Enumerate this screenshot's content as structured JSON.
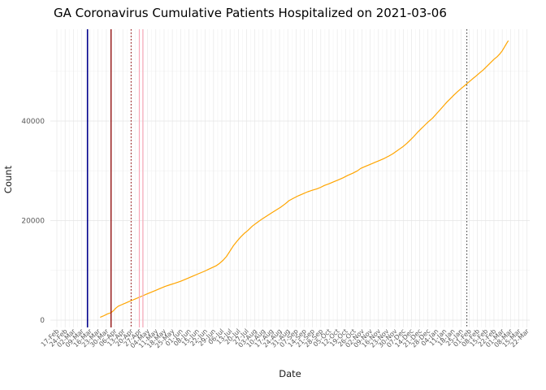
{
  "chart_data": {
    "type": "line",
    "title": "GA Coronavirus Cumulative Patients Hospitalized on 2021-03-06",
    "xlabel": "Date",
    "ylabel": "Count",
    "background": "#FFFFFF",
    "line_color": "#FFA500",
    "axis_text_color": "#5a5a5a",
    "axis_title_color": "#1a1a1a",
    "grid_major_color": "#E4E4E4",
    "grid_minor_color": "#F3F3F3",
    "grid": true,
    "legend": "none",
    "ylim": [
      0,
      58000
    ],
    "yticks": [
      0,
      20000,
      40000
    ],
    "y_minor_ticks": [
      10000,
      30000,
      50000
    ],
    "x_start_date": "2020-02-17",
    "x_tick_interval_days": 7,
    "x_tick_labels": [
      "17-Feb",
      "24-Feb",
      "02-Mar",
      "09-Mar",
      "16-Mar",
      "23-Mar",
      "30-Mar",
      "06-Apr",
      "13-Apr",
      "20-Apr",
      "27-Apr",
      "04-May",
      "11-May",
      "18-May",
      "25-May",
      "01-Jun",
      "08-Jun",
      "15-Jun",
      "22-Jun",
      "29-Jun",
      "06-Jul",
      "13-Jul",
      "20-Jul",
      "27-Jul",
      "03-Aug",
      "10-Aug",
      "17-Aug",
      "24-Aug",
      "31-Aug",
      "07-Sep",
      "14-Sep",
      "21-Sep",
      "28-Sep",
      "05-Oct",
      "12-Oct",
      "19-Oct",
      "26-Oct",
      "02-Nov",
      "09-Nov",
      "16-Nov",
      "23-Nov",
      "30-Nov",
      "07-Dec",
      "14-Dec",
      "21-Dec",
      "28-Dec",
      "04-Jan",
      "11-Jan",
      "18-Jan",
      "25-Jan",
      "01-Feb",
      "08-Feb",
      "15-Feb",
      "22-Feb",
      "01-Mar",
      "08-Mar",
      "15-Mar",
      "22-Mar"
    ],
    "series": [
      {
        "name": "Cumulative Patients Hospitalized",
        "points_x_unit": "days since 2020-02-17",
        "points": [
          [
            37,
            600
          ],
          [
            40,
            900
          ],
          [
            43,
            1250
          ],
          [
            46,
            1500
          ],
          [
            48,
            1900
          ],
          [
            50,
            2400
          ],
          [
            52,
            2800
          ],
          [
            55,
            3100
          ],
          [
            58,
            3400
          ],
          [
            61,
            3700
          ],
          [
            64,
            4000
          ],
          [
            67,
            4300
          ],
          [
            70,
            4600
          ],
          [
            73,
            4900
          ],
          [
            76,
            5200
          ],
          [
            80,
            5600
          ],
          [
            84,
            6000
          ],
          [
            88,
            6400
          ],
          [
            92,
            6800
          ],
          [
            96,
            7100
          ],
          [
            100,
            7400
          ],
          [
            105,
            7800
          ],
          [
            110,
            8300
          ],
          [
            115,
            8800
          ],
          [
            120,
            9300
          ],
          [
            125,
            9800
          ],
          [
            130,
            10350
          ],
          [
            135,
            10900
          ],
          [
            138,
            11400
          ],
          [
            141,
            12000
          ],
          [
            144,
            12800
          ],
          [
            147,
            13900
          ],
          [
            150,
            15000
          ],
          [
            153,
            15900
          ],
          [
            156,
            16700
          ],
          [
            159,
            17400
          ],
          [
            162,
            18000
          ],
          [
            166,
            18900
          ],
          [
            170,
            19600
          ],
          [
            174,
            20300
          ],
          [
            178,
            20900
          ],
          [
            182,
            21500
          ],
          [
            186,
            22100
          ],
          [
            190,
            22700
          ],
          [
            194,
            23400
          ],
          [
            197,
            24000
          ],
          [
            201,
            24500
          ],
          [
            205,
            25000
          ],
          [
            209,
            25400
          ],
          [
            213,
            25800
          ],
          [
            217,
            26100
          ],
          [
            221,
            26400
          ],
          [
            224,
            26700
          ],
          [
            227,
            27050
          ],
          [
            231,
            27400
          ],
          [
            235,
            27800
          ],
          [
            239,
            28200
          ],
          [
            243,
            28600
          ],
          [
            247,
            29100
          ],
          [
            251,
            29500
          ],
          [
            255,
            30000
          ],
          [
            258,
            30500
          ],
          [
            262,
            30900
          ],
          [
            266,
            31300
          ],
          [
            270,
            31700
          ],
          [
            274,
            32100
          ],
          [
            278,
            32500
          ],
          [
            282,
            33000
          ],
          [
            285,
            33400
          ],
          [
            288,
            33900
          ],
          [
            291,
            34400
          ],
          [
            294,
            34900
          ],
          [
            297,
            35500
          ],
          [
            300,
            36200
          ],
          [
            303,
            36900
          ],
          [
            306,
            37700
          ],
          [
            309,
            38400
          ],
          [
            312,
            39100
          ],
          [
            315,
            39800
          ],
          [
            319,
            40600
          ],
          [
            322,
            41400
          ],
          [
            325,
            42200
          ],
          [
            328,
            43000
          ],
          [
            331,
            43800
          ],
          [
            334,
            44500
          ],
          [
            337,
            45200
          ],
          [
            340,
            45900
          ],
          [
            343,
            46500
          ],
          [
            346,
            47100
          ],
          [
            350,
            47900
          ],
          [
            353,
            48500
          ],
          [
            356,
            49100
          ],
          [
            359,
            49700
          ],
          [
            362,
            50300
          ],
          [
            365,
            51000
          ],
          [
            368,
            51700
          ],
          [
            371,
            52400
          ],
          [
            374,
            53000
          ],
          [
            376,
            53500
          ],
          [
            378,
            54100
          ],
          [
            380,
            54900
          ],
          [
            382,
            55700
          ],
          [
            383,
            56100
          ]
        ]
      }
    ],
    "vlines": [
      {
        "date": "2020-03-14",
        "day": 26,
        "color": "#00008B",
        "style": "solid",
        "width": 1.6
      },
      {
        "date": "2020-04-03",
        "day": 46,
        "color": "#8B0000",
        "style": "solid",
        "width": 1.3
      },
      {
        "date": "2020-04-20",
        "day": 63,
        "color": "#8B0000",
        "style": "dotted",
        "width": 1.0
      },
      {
        "date": "2020-04-27",
        "day": 70,
        "color": "#F7A8B8",
        "style": "solid",
        "width": 1.2
      },
      {
        "date": "2020-04-30",
        "day": 73,
        "color": "#F7A8B8",
        "style": "solid",
        "width": 1.2
      },
      {
        "date": "2021-01-30",
        "day": 348,
        "color": "#333333",
        "style": "dotted",
        "width": 1.0
      }
    ]
  }
}
